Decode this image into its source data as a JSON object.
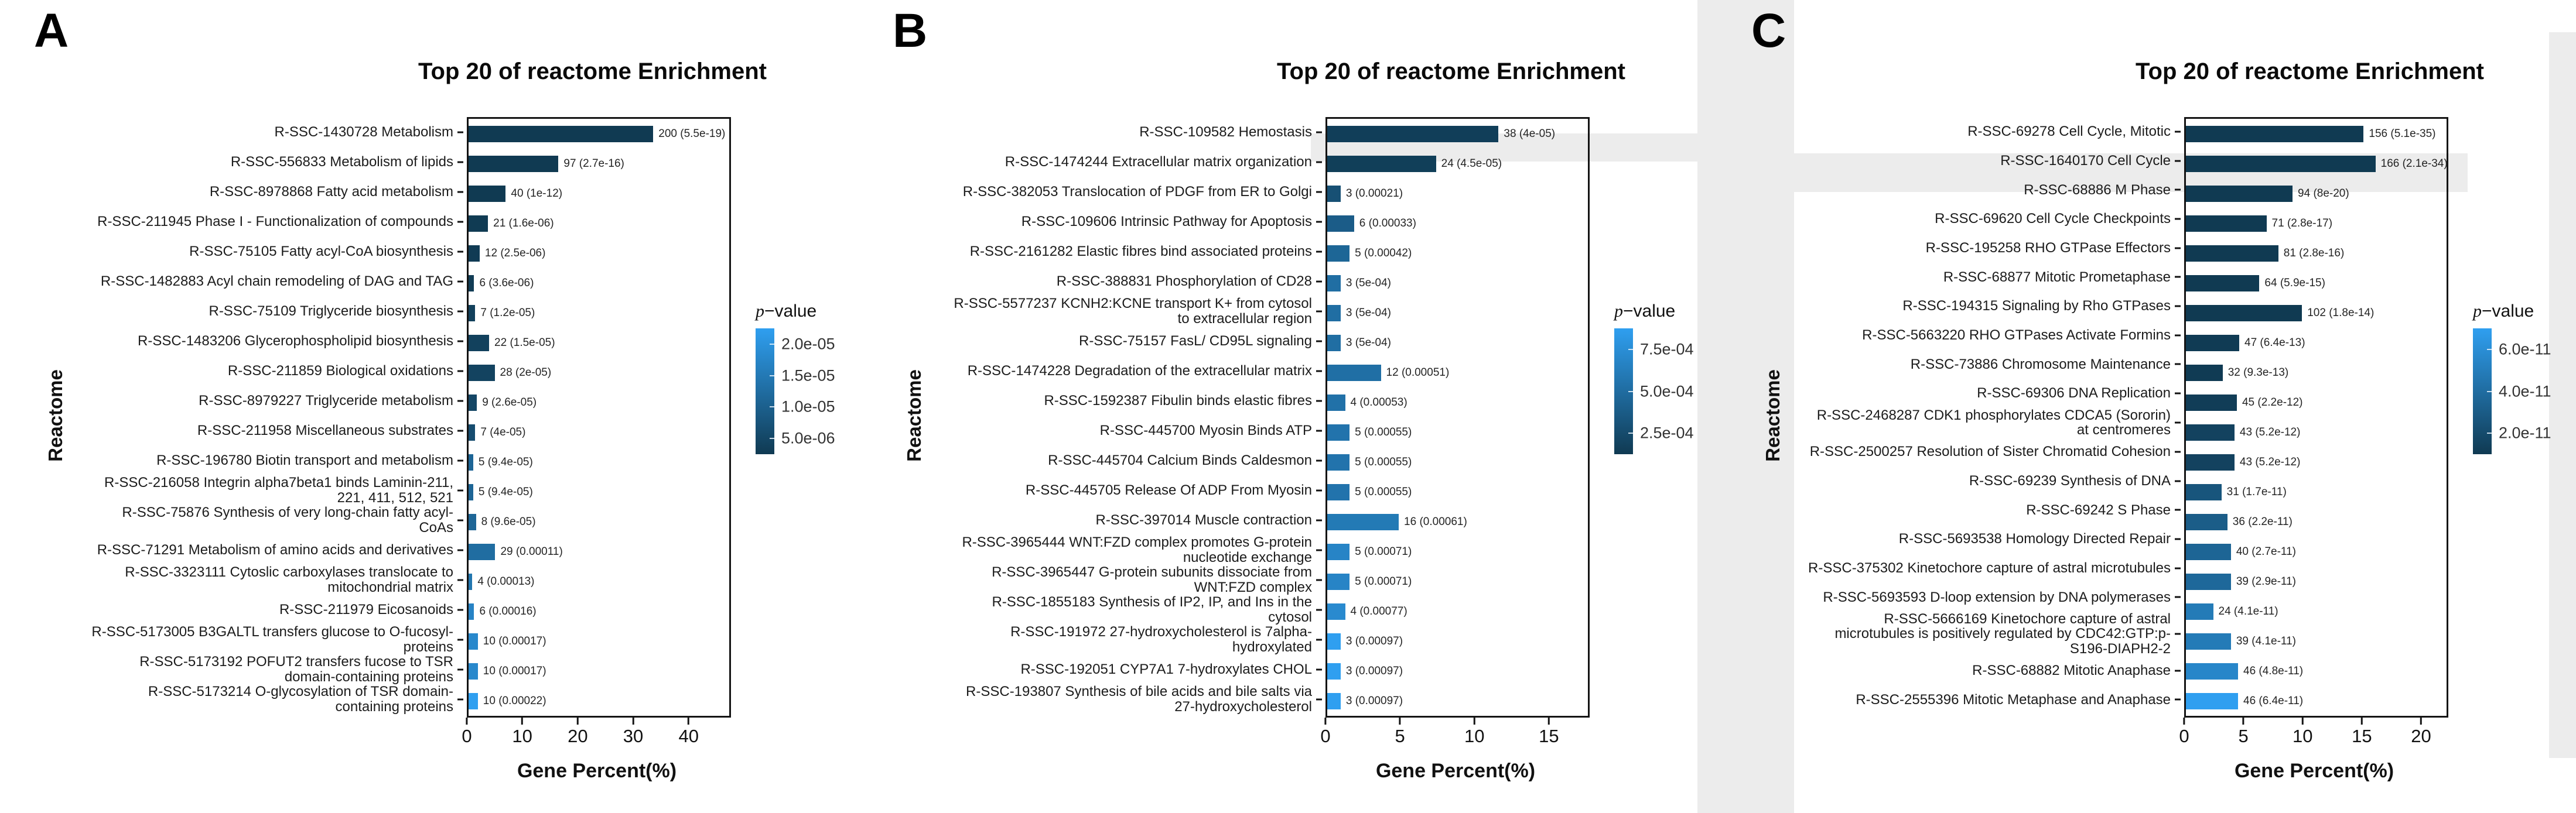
{
  "style": {
    "bar_dark": "#103a52",
    "bar_light": "#2f9ff0",
    "frame_color": "#141414"
  },
  "chart_data": [
    {
      "type": "bar",
      "orientation": "horizontal",
      "panel_letter": "A",
      "title": "Top 20 of reactome Enrichment",
      "xlabel": "Gene Percent(%)",
      "ylabel": "Reactome",
      "x_ticks": [
        0,
        10,
        20,
        30,
        40
      ],
      "x_max": 47,
      "legend": {
        "title_italic": "p",
        "title_rest": "−value",
        "ticks": [
          "2.0e-05",
          "1.5e-05",
          "1.0e-05",
          "5.0e-06"
        ]
      },
      "rows": [
        {
          "label": "R-SSC-1430728 Metabolism",
          "genes": 200,
          "p_value": "5.5e-19",
          "gene_percent": 33.3,
          "annotation": "200 (5.5e-19)"
        },
        {
          "label": "R-SSC-556833 Metabolism of lipids",
          "genes": 97,
          "p_value": "2.7e-16",
          "gene_percent": 16.2,
          "annotation": "97 (2.7e-16)"
        },
        {
          "label": "R-SSC-8978868 Fatty acid metabolism",
          "genes": 40,
          "p_value": "1e-12",
          "gene_percent": 6.7,
          "annotation": "40 (1e-12)"
        },
        {
          "label": "R-SSC-211945 Phase I - Functionalization of compounds",
          "genes": 21,
          "p_value": "1.6e-06",
          "gene_percent": 3.5,
          "annotation": "21 (1.6e-06)"
        },
        {
          "label": "R-SSC-75105 Fatty acyl-CoA biosynthesis",
          "genes": 12,
          "p_value": "2.5e-06",
          "gene_percent": 2.0,
          "annotation": "12 (2.5e-06)"
        },
        {
          "label": "R-SSC-1482883 Acyl chain remodeling of DAG and TAG",
          "genes": 6,
          "p_value": "3.6e-06",
          "gene_percent": 1.0,
          "annotation": "6 (3.6e-06)"
        },
        {
          "label": "R-SSC-75109 Triglyceride biosynthesis",
          "genes": 7,
          "p_value": "1.2e-05",
          "gene_percent": 1.2,
          "annotation": "7 (1.2e-05)"
        },
        {
          "label": "R-SSC-1483206 Glycerophospholipid biosynthesis",
          "genes": 22,
          "p_value": "1.5e-05",
          "gene_percent": 3.7,
          "annotation": "22 (1.5e-05)"
        },
        {
          "label": "R-SSC-211859 Biological oxidations",
          "genes": 28,
          "p_value": "2e-05",
          "gene_percent": 4.7,
          "annotation": "28 (2e-05)"
        },
        {
          "label": "R-SSC-8979227 Triglyceride metabolism",
          "genes": 9,
          "p_value": "2.6e-05",
          "gene_percent": 1.5,
          "annotation": "9 (2.6e-05)"
        },
        {
          "label": "R-SSC-211958 Miscellaneous substrates",
          "genes": 7,
          "p_value": "4e-05",
          "gene_percent": 1.2,
          "annotation": "7 (4e-05)"
        },
        {
          "label": "R-SSC-196780 Biotin transport and metabolism",
          "genes": 5,
          "p_value": "9.4e-05",
          "gene_percent": 0.83,
          "annotation": "5 (9.4e-05)"
        },
        {
          "label": "R-SSC-216058 Integrin alpha7beta1 binds Laminin-211, 221, 411, 512, 521",
          "genes": 5,
          "p_value": "9.4e-05",
          "gene_percent": 0.83,
          "annotation": "5 (9.4e-05)"
        },
        {
          "label": "R-SSC-75876 Synthesis of very long-chain fatty acyl-CoAs",
          "genes": 8,
          "p_value": "9.6e-05",
          "gene_percent": 1.33,
          "annotation": "8 (9.6e-05)"
        },
        {
          "label": "R-SSC-71291 Metabolism of amino acids and derivatives",
          "genes": 29,
          "p_value": "0.00011",
          "gene_percent": 4.8,
          "annotation": "29 (0.00011)"
        },
        {
          "label": "R-SSC-3323111 Cytoslic carboxylases translocate to mitochondrial matrix",
          "genes": 4,
          "p_value": "0.00013",
          "gene_percent": 0.67,
          "annotation": "4 (0.00013)"
        },
        {
          "label": "R-SSC-211979 Eicosanoids",
          "genes": 6,
          "p_value": "0.00016",
          "gene_percent": 1.0,
          "annotation": "6 (0.00016)"
        },
        {
          "label": "R-SSC-5173005 B3GALTL transfers glucose to O-fucosyl-proteins",
          "genes": 10,
          "p_value": "0.00017",
          "gene_percent": 1.67,
          "annotation": "10 (0.00017)"
        },
        {
          "label": "R-SSC-5173192 POFUT2 transfers fucose to TSR domain-containing proteins",
          "genes": 10,
          "p_value": "0.00017",
          "gene_percent": 1.67,
          "annotation": "10 (0.00017)"
        },
        {
          "label": "R-SSC-5173214 O-glycosylation of TSR domain-containing proteins",
          "genes": 10,
          "p_value": "0.00022",
          "gene_percent": 1.67,
          "annotation": "10 (0.00022)"
        }
      ]
    },
    {
      "type": "bar",
      "orientation": "horizontal",
      "panel_letter": "B",
      "title": "Top 20 of reactome Enrichment",
      "xlabel": "Gene Percent(%)",
      "ylabel": "Reactome",
      "x_ticks": [
        0,
        5,
        10,
        15
      ],
      "x_max": 17.5,
      "legend": {
        "title_italic": "p",
        "title_rest": "−value",
        "ticks": [
          "7.5e-04",
          "5.0e-04",
          "2.5e-04"
        ]
      },
      "rows": [
        {
          "label": "R-SSC-109582 Hemostasis",
          "genes": 38,
          "p_value": "4e-05",
          "gene_percent": 11.5,
          "annotation": "38 (4e-05)"
        },
        {
          "label": "R-SSC-1474244 Extracellular matrix organization",
          "genes": 24,
          "p_value": "4.5e-05",
          "gene_percent": 7.3,
          "annotation": "24 (4.5e-05)"
        },
        {
          "label": "R-SSC-382053 Translocation of PDGF from ER to Golgi",
          "genes": 3,
          "p_value": "0.00021",
          "gene_percent": 0.9,
          "annotation": "3 (0.00021)"
        },
        {
          "label": "R-SSC-109606 Intrinsic Pathway for Apoptosis",
          "genes": 6,
          "p_value": "0.00033",
          "gene_percent": 1.8,
          "annotation": "6 (0.00033)"
        },
        {
          "label": "R-SSC-2161282 Elastic fibres bind associated proteins",
          "genes": 5,
          "p_value": "0.00042",
          "gene_percent": 1.5,
          "annotation": "5 (0.00042)"
        },
        {
          "label": "R-SSC-388831 Phosphorylation of CD28",
          "genes": 3,
          "p_value": "0.0005",
          "gene_percent": 0.9,
          "annotation": "3 (5e-04)"
        },
        {
          "label": "R-SSC-5577237 KCNH2:KCNE transport K+ from cytosol to extracellular region",
          "genes": 3,
          "p_value": "0.0005",
          "gene_percent": 0.9,
          "annotation": "3 (5e-04)"
        },
        {
          "label": "R-SSC-75157 FasL/ CD95L signaling",
          "genes": 3,
          "p_value": "0.0005",
          "gene_percent": 0.9,
          "annotation": "3 (5e-04)"
        },
        {
          "label": "R-SSC-1474228 Degradation of the extracellular matrix",
          "genes": 12,
          "p_value": "0.00051",
          "gene_percent": 3.6,
          "annotation": "12 (0.00051)"
        },
        {
          "label": "R-SSC-1592387 Fibulin binds elastic fibres",
          "genes": 4,
          "p_value": "0.00053",
          "gene_percent": 1.2,
          "annotation": "4 (0.00053)"
        },
        {
          "label": "R-SSC-445700 Myosin Binds ATP",
          "genes": 5,
          "p_value": "0.00055",
          "gene_percent": 1.5,
          "annotation": "5 (0.00055)"
        },
        {
          "label": "R-SSC-445704 Calcium Binds Caldesmon",
          "genes": 5,
          "p_value": "0.00055",
          "gene_percent": 1.5,
          "annotation": "5 (0.00055)"
        },
        {
          "label": "R-SSC-445705 Release Of ADP From Myosin",
          "genes": 5,
          "p_value": "0.00055",
          "gene_percent": 1.5,
          "annotation": "5 (0.00055)"
        },
        {
          "label": "R-SSC-397014 Muscle contraction",
          "genes": 16,
          "p_value": "0.00061",
          "gene_percent": 4.8,
          "annotation": "16 (0.00061)"
        },
        {
          "label": "R-SSC-3965444 WNT:FZD complex promotes G-protein nucleotide exchange",
          "genes": 5,
          "p_value": "0.00071",
          "gene_percent": 1.5,
          "annotation": "5 (0.00071)"
        },
        {
          "label": "R-SSC-3965447 G-protein subunits dissociate from WNT:FZD complex",
          "genes": 5,
          "p_value": "0.00071",
          "gene_percent": 1.5,
          "annotation": "5 (0.00071)"
        },
        {
          "label": "R-SSC-1855183 Synthesis of IP2, IP, and Ins in the cytosol",
          "genes": 4,
          "p_value": "0.00077",
          "gene_percent": 1.2,
          "annotation": "4 (0.00077)"
        },
        {
          "label": "R-SSC-191972 27-hydroxycholesterol is 7alpha-hydroxylated",
          "genes": 3,
          "p_value": "0.00097",
          "gene_percent": 0.9,
          "annotation": "3 (0.00097)"
        },
        {
          "label": "R-SSC-192051 CYP7A1 7-hydroxylates CHOL",
          "genes": 3,
          "p_value": "0.00097",
          "gene_percent": 0.9,
          "annotation": "3 (0.00097)"
        },
        {
          "label": "R-SSC-193807 Synthesis of bile acids and bile salts via 27-hydroxycholesterol",
          "genes": 3,
          "p_value": "0.00097",
          "gene_percent": 0.9,
          "annotation": "3 (0.00097)"
        }
      ]
    },
    {
      "type": "bar",
      "orientation": "horizontal",
      "panel_letter": "C",
      "title": "Top 20 of reactome Enrichment",
      "xlabel": "Gene Percent(%)",
      "ylabel": "Reactome",
      "x_ticks": [
        0,
        5,
        10,
        15,
        20
      ],
      "x_max": 22,
      "legend": {
        "title_italic": "p",
        "title_rest": "−value",
        "ticks": [
          "6.0e-11",
          "4.0e-11",
          "2.0e-11"
        ]
      },
      "rows": [
        {
          "label": "R-SSC-69278 Cell Cycle, Mitotic",
          "genes": 156,
          "p_value": "5.1e-35",
          "gene_percent": 15.0,
          "annotation": "156 (5.1e-35)"
        },
        {
          "label": "R-SSC-1640170 Cell Cycle",
          "genes": 166,
          "p_value": "2.1e-34",
          "gene_percent": 16.0,
          "annotation": "166 (2.1e-34)"
        },
        {
          "label": "R-SSC-68886 M Phase",
          "genes": 94,
          "p_value": "8e-20",
          "gene_percent": 9.0,
          "annotation": "94 (8e-20)"
        },
        {
          "label": "R-SSC-69620 Cell Cycle Checkpoints",
          "genes": 71,
          "p_value": "2.8e-17",
          "gene_percent": 6.8,
          "annotation": "71 (2.8e-17)"
        },
        {
          "label": "R-SSC-195258 RHO GTPase Effectors",
          "genes": 81,
          "p_value": "2.8e-16",
          "gene_percent": 7.8,
          "annotation": "81 (2.8e-16)"
        },
        {
          "label": "R-SSC-68877 Mitotic Prometaphase",
          "genes": 64,
          "p_value": "5.9e-15",
          "gene_percent": 6.2,
          "annotation": "64 (5.9e-15)"
        },
        {
          "label": "R-SSC-194315 Signaling by Rho GTPases",
          "genes": 102,
          "p_value": "1.8e-14",
          "gene_percent": 9.8,
          "annotation": "102 (1.8e-14)"
        },
        {
          "label": "R-SSC-5663220 RHO GTPases Activate Formins",
          "genes": 47,
          "p_value": "6.4e-13",
          "gene_percent": 4.5,
          "annotation": "47 (6.4e-13)"
        },
        {
          "label": "R-SSC-73886 Chromosome Maintenance",
          "genes": 32,
          "p_value": "9.3e-13",
          "gene_percent": 3.1,
          "annotation": "32 (9.3e-13)"
        },
        {
          "label": "R-SSC-69306 DNA Replication",
          "genes": 45,
          "p_value": "2.2e-12",
          "gene_percent": 4.3,
          "annotation": "45 (2.2e-12)"
        },
        {
          "label": "R-SSC-2468287 CDK1 phosphorylates CDCA5 (Sororin) at centromeres",
          "genes": 43,
          "p_value": "5.2e-12",
          "gene_percent": 4.1,
          "annotation": "43 (5.2e-12)"
        },
        {
          "label": "R-SSC-2500257 Resolution of Sister Chromatid Cohesion",
          "genes": 43,
          "p_value": "5.2e-12",
          "gene_percent": 4.1,
          "annotation": "43 (5.2e-12)"
        },
        {
          "label": "R-SSC-69239 Synthesis of DNA",
          "genes": 31,
          "p_value": "1.7e-11",
          "gene_percent": 3.0,
          "annotation": "31 (1.7e-11)"
        },
        {
          "label": "R-SSC-69242 S Phase",
          "genes": 36,
          "p_value": "2.2e-11",
          "gene_percent": 3.5,
          "annotation": "36 (2.2e-11)"
        },
        {
          "label": "R-SSC-5693538 Homology Directed Repair",
          "genes": 40,
          "p_value": "2.7e-11",
          "gene_percent": 3.8,
          "annotation": "40 (2.7e-11)"
        },
        {
          "label": "R-SSC-375302 Kinetochore capture of astral microtubules",
          "genes": 39,
          "p_value": "2.9e-11",
          "gene_percent": 3.8,
          "annotation": "39 (2.9e-11)"
        },
        {
          "label": "R-SSC-5693593 D-loop extension by DNA polymerases",
          "genes": 24,
          "p_value": "4.1e-11",
          "gene_percent": 2.3,
          "annotation": "24 (4.1e-11)"
        },
        {
          "label": "R-SSC-5666169 Kinetochore capture of astral microtubules is positively regulated by CDC42:GTP:p-S196-DIAPH2-2",
          "genes": 39,
          "p_value": "4.1e-11",
          "gene_percent": 3.8,
          "annotation": "39 (4.1e-11)"
        },
        {
          "label": "R-SSC-68882 Mitotic Anaphase",
          "genes": 46,
          "p_value": "4.8e-11",
          "gene_percent": 4.4,
          "annotation": "46 (4.8e-11)"
        },
        {
          "label": "R-SSC-2555396 Mitotic Metaphase and Anaphase",
          "genes": 46,
          "p_value": "6.4e-11",
          "gene_percent": 4.4,
          "annotation": "46 (6.4e-11)"
        }
      ]
    }
  ]
}
